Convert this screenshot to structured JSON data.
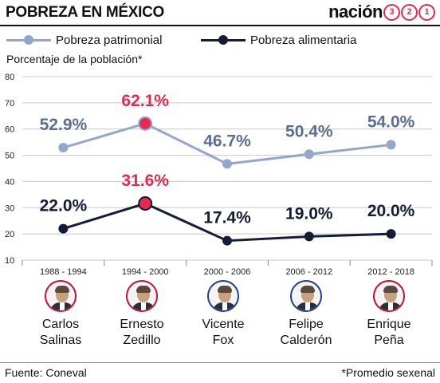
{
  "header": {
    "title": "POBREZA EN MÉXICO",
    "brand_text": "nación",
    "brand_digits": [
      "3",
      "2",
      "1"
    ]
  },
  "colors": {
    "patrimonial": "#93a6cb",
    "patrimonial_label": "#5a6e93",
    "alimentaria": "#141c38",
    "highlight": "#e5294f",
    "grid": "#c8c8c8",
    "avatar_ring_red": "#c8102e",
    "avatar_ring_blue": "#1f3f8f"
  },
  "legend": [
    {
      "label": "Pobreza patrimonial",
      "series": "patrimonial"
    },
    {
      "label": "Pobreza alimentaria",
      "series": "alimentaria"
    }
  ],
  "chart_data": {
    "type": "line",
    "ylabel": "Porcentaje de la población*",
    "categories": [
      "1988 - 1994",
      "1994 - 2000",
      "2000 - 2006",
      "2006 - 2012",
      "2012 - 2018"
    ],
    "series": [
      {
        "name": "Pobreza patrimonial",
        "key": "patrimonial",
        "values": [
          52.9,
          62.1,
          46.7,
          50.4,
          54.0
        ],
        "labels": [
          "52.9%",
          "62.1%",
          "46.7%",
          "50.4%",
          "54.0%"
        ],
        "highlight_index": 1
      },
      {
        "name": "Pobreza alimentaria",
        "key": "alimentaria",
        "values": [
          22.0,
          31.6,
          17.4,
          19.0,
          20.0
        ],
        "labels": [
          "22.0%",
          "31.6%",
          "17.4%",
          "19.0%",
          "20.0%"
        ],
        "highlight_index": 1
      }
    ],
    "ylim": [
      10,
      80
    ],
    "yticks": [
      10,
      20,
      30,
      40,
      50,
      60,
      70,
      80
    ],
    "grid": true,
    "legend_position": "top-left"
  },
  "presidents": [
    {
      "line1": "Carlos",
      "line2": "Salinas",
      "ring": "red"
    },
    {
      "line1": "Ernesto",
      "line2": "Zedillo",
      "ring": "red"
    },
    {
      "line1": "Vicente",
      "line2": "Fox",
      "ring": "blue"
    },
    {
      "line1": "Felipe",
      "line2": "Calderón",
      "ring": "blue"
    },
    {
      "line1": "Enrique",
      "line2": "Peña",
      "ring": "red"
    }
  ],
  "footer": {
    "source": "Fuente: Coneval",
    "note": "*Promedio sexenal"
  }
}
